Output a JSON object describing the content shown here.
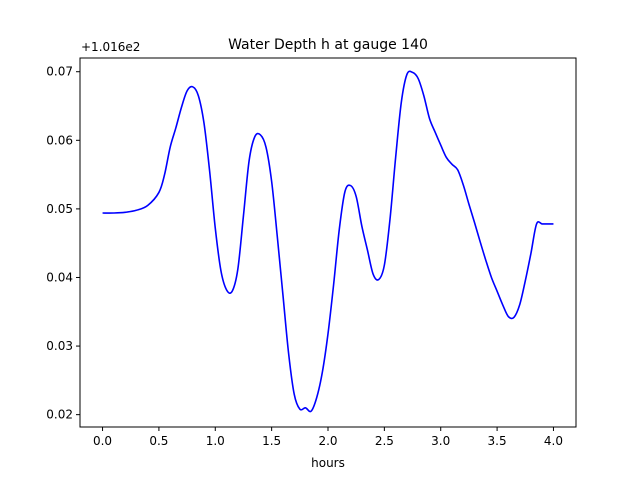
{
  "chart_data": {
    "type": "line",
    "title": "Water Depth h at gauge 140",
    "xlabel": "hours",
    "ylabel": "",
    "y_offset_label": "+1.016e2",
    "xlim": [
      -0.2,
      4.2
    ],
    "ylim": [
      0.0182,
      0.072
    ],
    "x_ticks": [
      0.0,
      0.5,
      1.0,
      1.5,
      2.0,
      2.5,
      3.0,
      3.5,
      4.0
    ],
    "x_tick_labels": [
      "0.0",
      "0.5",
      "1.0",
      "1.5",
      "2.0",
      "2.5",
      "3.0",
      "3.5",
      "4.0"
    ],
    "y_ticks": [
      0.02,
      0.03,
      0.04,
      0.05,
      0.06,
      0.07
    ],
    "y_tick_labels": [
      "0.02",
      "0.03",
      "0.04",
      "0.05",
      "0.06",
      "0.07"
    ],
    "grid": false,
    "series": [
      {
        "color": "#0000ff",
        "x": [
          0.0,
          0.1,
          0.2,
          0.3,
          0.4,
          0.5,
          0.55,
          0.6,
          0.65,
          0.7,
          0.75,
          0.8,
          0.85,
          0.9,
          0.95,
          1.0,
          1.05,
          1.1,
          1.15,
          1.2,
          1.25,
          1.3,
          1.35,
          1.4,
          1.45,
          1.5,
          1.55,
          1.6,
          1.65,
          1.7,
          1.75,
          1.8,
          1.85,
          1.9,
          1.95,
          2.0,
          2.05,
          2.1,
          2.15,
          2.2,
          2.25,
          2.3,
          2.35,
          2.4,
          2.45,
          2.5,
          2.55,
          2.6,
          2.65,
          2.7,
          2.75,
          2.8,
          2.85,
          2.9,
          2.95,
          3.0,
          3.05,
          3.1,
          3.15,
          3.2,
          3.25,
          3.3,
          3.35,
          3.4,
          3.45,
          3.5,
          3.55,
          3.6,
          3.65,
          3.7,
          3.75,
          3.8,
          3.85,
          3.9,
          3.95,
          4.0
        ],
        "y": [
          0.0494,
          0.0494,
          0.0495,
          0.0498,
          0.0505,
          0.0524,
          0.055,
          0.059,
          0.0618,
          0.0648,
          0.0672,
          0.0678,
          0.0665,
          0.0625,
          0.0555,
          0.0472,
          0.041,
          0.0382,
          0.038,
          0.0412,
          0.049,
          0.057,
          0.0605,
          0.0608,
          0.059,
          0.054,
          0.046,
          0.0375,
          0.029,
          0.023,
          0.0208,
          0.021,
          0.0205,
          0.0225,
          0.0262,
          0.0318,
          0.039,
          0.047,
          0.0525,
          0.0534,
          0.0518,
          0.0475,
          0.044,
          0.0405,
          0.0397,
          0.0418,
          0.0485,
          0.0575,
          0.0655,
          0.0696,
          0.0699,
          0.069,
          0.0665,
          0.0632,
          0.0612,
          0.0593,
          0.0575,
          0.0565,
          0.0557,
          0.0535,
          0.0507,
          0.048,
          0.0452,
          0.0425,
          0.04,
          0.038,
          0.036,
          0.0343,
          0.0342,
          0.036,
          0.0395,
          0.0435,
          0.0478,
          0.0478,
          0.0478,
          0.0478
        ]
      }
    ]
  }
}
